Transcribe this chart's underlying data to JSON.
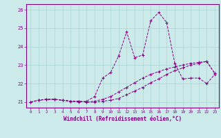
{
  "xlabel": "Windchill (Refroidissement éolien,°C)",
  "background_color": "#cceaea",
  "line_color": "#800080",
  "grid_color": "#aad4d4",
  "xlim": [
    -0.5,
    23.5
  ],
  "ylim": [
    20.7,
    26.3
  ],
  "yticks": [
    21,
    22,
    23,
    24,
    25,
    26
  ],
  "xticks": [
    0,
    1,
    2,
    3,
    4,
    5,
    6,
    7,
    8,
    9,
    10,
    11,
    12,
    13,
    14,
    15,
    16,
    17,
    18,
    19,
    20,
    21,
    22,
    23
  ],
  "y_zigzag": [
    21.0,
    21.1,
    21.15,
    21.15,
    21.1,
    21.05,
    21.0,
    21.05,
    21.3,
    22.3,
    22.6,
    23.5,
    24.8,
    23.4,
    23.55,
    25.4,
    25.85,
    25.3,
    23.1,
    22.25,
    22.3,
    22.3,
    22.0,
    22.5
  ],
  "y_smooth1": [
    21.0,
    21.1,
    21.15,
    21.15,
    21.1,
    21.05,
    21.05,
    21.0,
    21.0,
    21.05,
    21.1,
    21.2,
    21.4,
    21.6,
    21.8,
    22.05,
    22.25,
    22.5,
    22.7,
    22.85,
    23.0,
    23.1,
    23.2,
    22.55
  ],
  "y_smooth2": [
    21.0,
    21.1,
    21.15,
    21.15,
    21.1,
    21.05,
    21.05,
    21.0,
    21.05,
    21.15,
    21.3,
    21.55,
    21.8,
    22.05,
    22.3,
    22.5,
    22.65,
    22.8,
    22.9,
    23.0,
    23.1,
    23.15,
    23.2,
    22.55
  ]
}
